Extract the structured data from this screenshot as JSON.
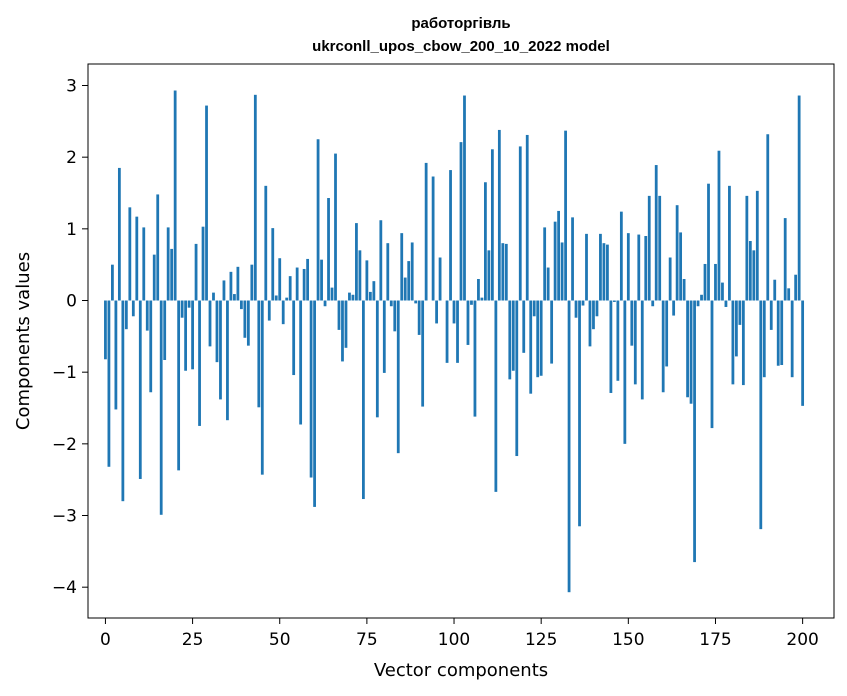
{
  "chart_data": {
    "type": "bar",
    "title": "работоргівль",
    "subtitle": "ukrconll_upos_cbow_200_10_2022 model",
    "xlabel": "Vector components",
    "ylabel": "Components values",
    "xlim": [
      -5,
      209
    ],
    "ylim": [
      -4.43,
      3.3
    ],
    "xticks": [
      0,
      25,
      50,
      75,
      100,
      125,
      150,
      175,
      200
    ],
    "yticks": [
      -4,
      -3,
      -2,
      -1,
      0,
      1,
      2,
      3
    ],
    "xtick_labels": [
      "0",
      "25",
      "50",
      "75",
      "100",
      "125",
      "150",
      "175",
      "200"
    ],
    "ytick_labels": [
      "−4",
      "−3",
      "−2",
      "−1",
      "0",
      "1",
      "2",
      "3"
    ],
    "bar_color": "#1f77b4",
    "grid": false,
    "values": [
      -0.82,
      -2.32,
      0.5,
      -1.52,
      1.85,
      -2.8,
      -0.4,
      1.3,
      -0.22,
      1.17,
      -2.49,
      1.02,
      -0.42,
      -1.28,
      0.64,
      1.48,
      -2.99,
      -0.83,
      1.02,
      0.72,
      2.93,
      -2.37,
      -0.24,
      -0.98,
      -0.1,
      -0.96,
      0.79,
      -1.75,
      1.03,
      2.72,
      -0.64,
      0.11,
      -0.86,
      -1.38,
      0.28,
      -1.67,
      0.4,
      0.09,
      0.47,
      -0.12,
      -0.52,
      -0.63,
      0.5,
      2.87,
      -1.49,
      -2.43,
      1.6,
      -0.28,
      1.01,
      0.07,
      0.59,
      -0.33,
      0.04,
      0.34,
      -1.04,
      0.46,
      -1.73,
      0.44,
      0.58,
      -2.47,
      -2.88,
      2.25,
      0.57,
      -0.08,
      1.43,
      0.18,
      2.05,
      -0.41,
      -0.85,
      -0.66,
      0.11,
      0.08,
      1.08,
      0.7,
      -2.77,
      0.56,
      0.12,
      0.27,
      -1.63,
      1.12,
      -1.01,
      0.8,
      -0.08,
      -0.43,
      -2.13,
      0.94,
      0.32,
      0.55,
      0.81,
      -0.04,
      -0.48,
      -1.48,
      1.92,
      0.0,
      1.73,
      -0.32,
      0.6,
      0.0,
      -0.87,
      1.82,
      -0.32,
      -0.87,
      2.21,
      2.86,
      -0.62,
      -0.06,
      -1.62,
      0.3,
      0.04,
      1.65,
      0.7,
      2.11,
      -2.67,
      2.38,
      0.8,
      0.79,
      -1.1,
      -0.98,
      -2.17,
      2.15,
      -0.73,
      2.31,
      -1.3,
      -0.22,
      -1.07,
      -1.05,
      1.02,
      0.46,
      -0.88,
      1.1,
      1.25,
      0.81,
      2.37,
      -4.07,
      1.16,
      -0.24,
      -3.15,
      -0.07,
      0.93,
      -0.64,
      -0.4,
      -0.22,
      0.93,
      0.8,
      0.78,
      -1.29,
      -0.02,
      -1.12,
      1.24,
      -2.0,
      0.94,
      -0.63,
      -1.17,
      0.92,
      -1.38,
      0.9,
      1.46,
      -0.08,
      1.89,
      1.46,
      -1.28,
      -0.92,
      0.6,
      -0.21,
      1.33,
      0.95,
      0.3,
      -1.35,
      -1.44,
      -3.65,
      -0.08,
      0.08,
      0.51,
      1.63,
      -1.78,
      0.51,
      2.09,
      0.25,
      -0.09,
      1.6,
      -1.17,
      -0.78,
      -0.34,
      -1.18,
      1.46,
      0.83,
      0.7,
      1.53,
      -3.19,
      -1.07,
      2.32,
      -0.41,
      0.29,
      -0.91,
      -0.9,
      1.15,
      0.17,
      -1.07,
      0.36,
      2.86,
      -1.47
    ]
  }
}
